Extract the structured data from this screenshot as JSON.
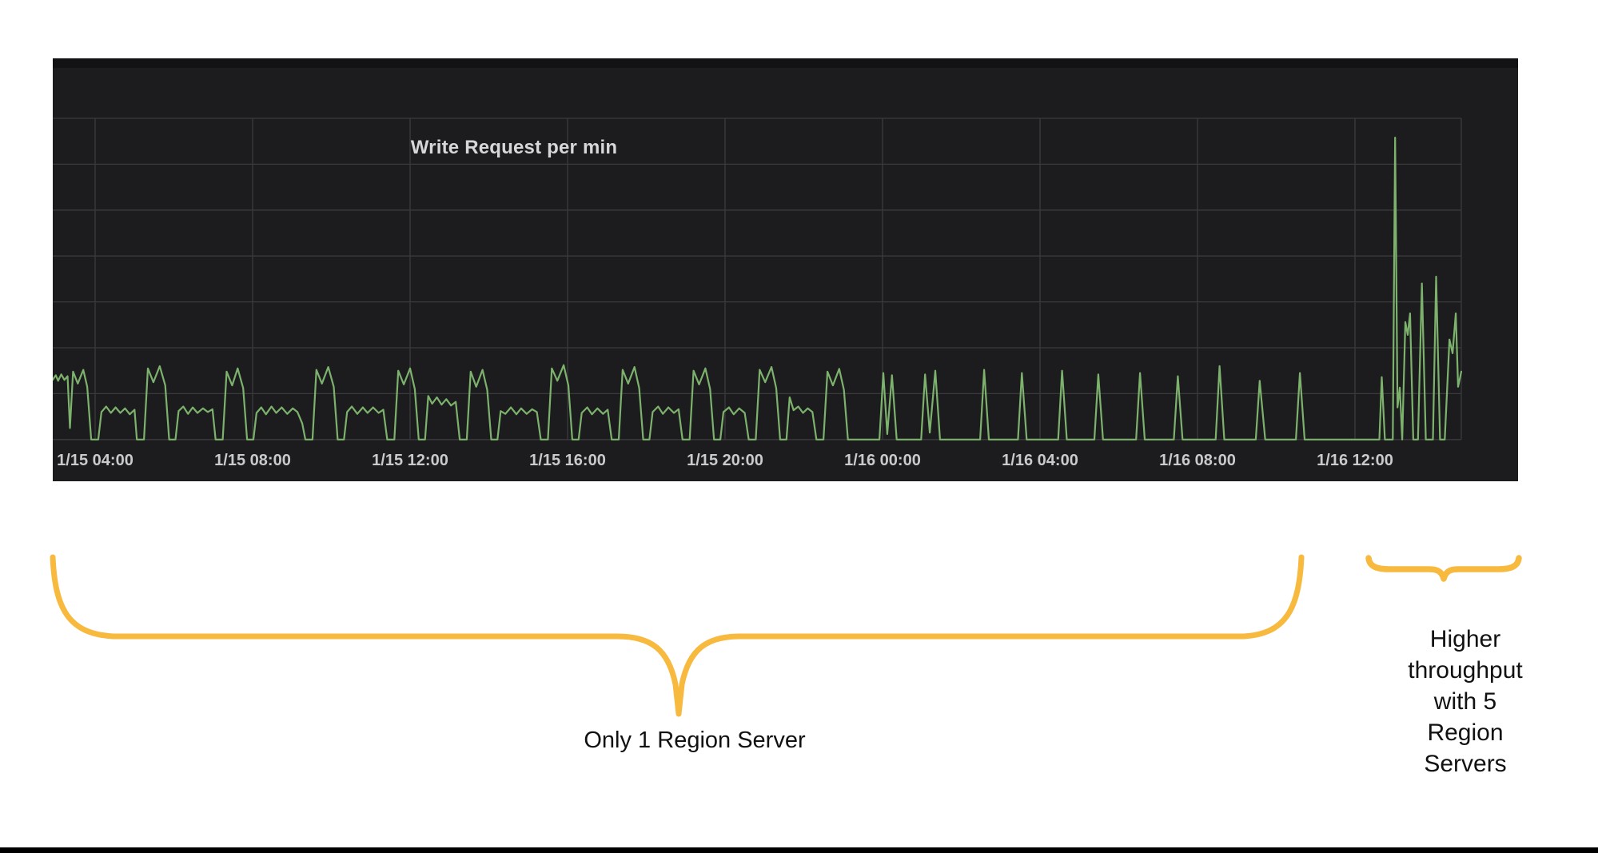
{
  "page": {
    "background_color": "#ffffff",
    "bottom_bar_color": "#000000"
  },
  "panel": {
    "title": "Write Request per min",
    "background_color": "#1c1c1e",
    "header_strip_color": "#121214",
    "title_color": "#d6d7d9",
    "grid_color": "#3b3b3f",
    "axis_label_color": "#c9cacc"
  },
  "chart_data": {
    "type": "line",
    "title": "Write Request per min",
    "series_name": "write requests per min",
    "line_color": "#7db26d",
    "legend": "none",
    "grid": "on",
    "xlabel": "",
    "ylabel": "",
    "y_axis_tick_labels_visible": false,
    "y_unit": "horizontal gridline units (0 = baseline, 7 = top gridline; no numeric y labels shown)",
    "y_range": [
      0,
      7
    ],
    "x_unit": "hours since 1/15 00:00",
    "x_range": [
      2.92,
      38.7
    ],
    "x_ticks": {
      "hours": [
        4,
        8,
        12,
        16,
        20,
        24,
        28,
        32,
        36
      ],
      "labels": [
        "1/15 04:00",
        "1/15 08:00",
        "1/15 12:00",
        "1/15 16:00",
        "1/15 20:00",
        "1/16 00:00",
        "1/16 04:00",
        "1/16 08:00",
        "1/16 12:00"
      ]
    },
    "points": [
      [
        2.92,
        1.3
      ],
      [
        3.0,
        1.4
      ],
      [
        3.06,
        1.28
      ],
      [
        3.14,
        1.42
      ],
      [
        3.22,
        1.3
      ],
      [
        3.3,
        1.38
      ],
      [
        3.36,
        0.25
      ],
      [
        3.44,
        1.48
      ],
      [
        3.56,
        1.22
      ],
      [
        3.7,
        1.52
      ],
      [
        3.8,
        1.15
      ],
      [
        3.9,
        0.0
      ],
      [
        4.08,
        0.0
      ],
      [
        4.16,
        0.6
      ],
      [
        4.28,
        0.72
      ],
      [
        4.4,
        0.58
      ],
      [
        4.52,
        0.7
      ],
      [
        4.64,
        0.58
      ],
      [
        4.76,
        0.68
      ],
      [
        4.88,
        0.55
      ],
      [
        5.0,
        0.65
      ],
      [
        5.06,
        0.0
      ],
      [
        5.24,
        0.0
      ],
      [
        5.34,
        1.55
      ],
      [
        5.48,
        1.25
      ],
      [
        5.64,
        1.6
      ],
      [
        5.78,
        1.18
      ],
      [
        5.88,
        0.0
      ],
      [
        6.04,
        0.0
      ],
      [
        6.12,
        0.62
      ],
      [
        6.24,
        0.72
      ],
      [
        6.36,
        0.56
      ],
      [
        6.48,
        0.7
      ],
      [
        6.6,
        0.58
      ],
      [
        6.74,
        0.68
      ],
      [
        6.86,
        0.6
      ],
      [
        6.98,
        0.66
      ],
      [
        7.06,
        0.0
      ],
      [
        7.24,
        0.0
      ],
      [
        7.34,
        1.48
      ],
      [
        7.48,
        1.18
      ],
      [
        7.62,
        1.55
      ],
      [
        7.76,
        1.12
      ],
      [
        7.86,
        0.0
      ],
      [
        8.02,
        0.0
      ],
      [
        8.1,
        0.58
      ],
      [
        8.22,
        0.7
      ],
      [
        8.34,
        0.55
      ],
      [
        8.48,
        0.72
      ],
      [
        8.6,
        0.58
      ],
      [
        8.74,
        0.7
      ],
      [
        8.88,
        0.56
      ],
      [
        9.02,
        0.68
      ],
      [
        9.14,
        0.6
      ],
      [
        9.26,
        0.35
      ],
      [
        9.34,
        0.0
      ],
      [
        9.52,
        0.0
      ],
      [
        9.62,
        1.52
      ],
      [
        9.76,
        1.22
      ],
      [
        9.92,
        1.58
      ],
      [
        10.06,
        1.15
      ],
      [
        10.16,
        0.0
      ],
      [
        10.32,
        0.0
      ],
      [
        10.4,
        0.6
      ],
      [
        10.52,
        0.72
      ],
      [
        10.66,
        0.56
      ],
      [
        10.8,
        0.7
      ],
      [
        10.92,
        0.58
      ],
      [
        11.06,
        0.7
      ],
      [
        11.2,
        0.58
      ],
      [
        11.32,
        0.65
      ],
      [
        11.42,
        0.0
      ],
      [
        11.6,
        0.0
      ],
      [
        11.7,
        1.5
      ],
      [
        11.84,
        1.2
      ],
      [
        12.0,
        1.55
      ],
      [
        12.12,
        1.1
      ],
      [
        12.22,
        0.0
      ],
      [
        12.38,
        0.0
      ],
      [
        12.46,
        0.95
      ],
      [
        12.56,
        0.78
      ],
      [
        12.68,
        0.92
      ],
      [
        12.8,
        0.76
      ],
      [
        12.92,
        0.88
      ],
      [
        13.04,
        0.74
      ],
      [
        13.16,
        0.82
      ],
      [
        13.26,
        0.0
      ],
      [
        13.44,
        0.0
      ],
      [
        13.54,
        1.48
      ],
      [
        13.68,
        1.15
      ],
      [
        13.84,
        1.52
      ],
      [
        13.96,
        1.08
      ],
      [
        14.06,
        0.0
      ],
      [
        14.22,
        0.0
      ],
      [
        14.3,
        0.62
      ],
      [
        14.42,
        0.56
      ],
      [
        14.56,
        0.7
      ],
      [
        14.7,
        0.55
      ],
      [
        14.82,
        0.68
      ],
      [
        14.96,
        0.56
      ],
      [
        15.1,
        0.66
      ],
      [
        15.22,
        0.6
      ],
      [
        15.32,
        0.0
      ],
      [
        15.5,
        0.0
      ],
      [
        15.6,
        1.55
      ],
      [
        15.74,
        1.28
      ],
      [
        15.9,
        1.62
      ],
      [
        16.02,
        1.18
      ],
      [
        16.12,
        0.0
      ],
      [
        16.28,
        0.0
      ],
      [
        16.36,
        0.58
      ],
      [
        16.5,
        0.7
      ],
      [
        16.62,
        0.55
      ],
      [
        16.76,
        0.68
      ],
      [
        16.9,
        0.56
      ],
      [
        17.02,
        0.65
      ],
      [
        17.12,
        0.0
      ],
      [
        17.3,
        0.0
      ],
      [
        17.4,
        1.52
      ],
      [
        17.54,
        1.22
      ],
      [
        17.7,
        1.58
      ],
      [
        17.82,
        1.12
      ],
      [
        17.92,
        0.0
      ],
      [
        18.08,
        0.0
      ],
      [
        18.16,
        0.6
      ],
      [
        18.3,
        0.72
      ],
      [
        18.42,
        0.56
      ],
      [
        18.56,
        0.7
      ],
      [
        18.7,
        0.58
      ],
      [
        18.82,
        0.66
      ],
      [
        18.92,
        0.0
      ],
      [
        19.1,
        0.0
      ],
      [
        19.2,
        1.5
      ],
      [
        19.34,
        1.2
      ],
      [
        19.5,
        1.55
      ],
      [
        19.62,
        1.1
      ],
      [
        19.72,
        0.0
      ],
      [
        19.88,
        0.0
      ],
      [
        19.96,
        0.6
      ],
      [
        20.1,
        0.7
      ],
      [
        20.22,
        0.55
      ],
      [
        20.36,
        0.68
      ],
      [
        20.5,
        0.58
      ],
      [
        20.6,
        0.0
      ],
      [
        20.78,
        0.0
      ],
      [
        20.88,
        1.52
      ],
      [
        21.02,
        1.25
      ],
      [
        21.18,
        1.58
      ],
      [
        21.3,
        1.12
      ],
      [
        21.4,
        0.0
      ],
      [
        21.56,
        0.0
      ],
      [
        21.64,
        0.92
      ],
      [
        21.74,
        0.64
      ],
      [
        21.86,
        0.72
      ],
      [
        21.98,
        0.58
      ],
      [
        22.1,
        0.68
      ],
      [
        22.22,
        0.6
      ],
      [
        22.32,
        0.0
      ],
      [
        22.5,
        0.0
      ],
      [
        22.6,
        1.48
      ],
      [
        22.74,
        1.18
      ],
      [
        22.9,
        1.54
      ],
      [
        23.02,
        1.08
      ],
      [
        23.12,
        0.0
      ],
      [
        23.92,
        0.0
      ],
      [
        24.02,
        1.45
      ],
      [
        24.12,
        0.12
      ],
      [
        24.24,
        1.4
      ],
      [
        24.36,
        0.0
      ],
      [
        24.98,
        0.0
      ],
      [
        25.08,
        1.42
      ],
      [
        25.2,
        0.15
      ],
      [
        25.34,
        1.5
      ],
      [
        25.46,
        0.0
      ],
      [
        26.48,
        0.0
      ],
      [
        26.58,
        1.52
      ],
      [
        26.7,
        0.0
      ],
      [
        27.44,
        0.0
      ],
      [
        27.54,
        1.45
      ],
      [
        27.66,
        0.0
      ],
      [
        28.46,
        0.0
      ],
      [
        28.56,
        1.5
      ],
      [
        28.68,
        0.0
      ],
      [
        29.38,
        0.0
      ],
      [
        29.48,
        1.42
      ],
      [
        29.6,
        0.0
      ],
      [
        30.44,
        0.0
      ],
      [
        30.54,
        1.45
      ],
      [
        30.66,
        0.0
      ],
      [
        31.4,
        0.0
      ],
      [
        31.5,
        1.38
      ],
      [
        31.62,
        0.0
      ],
      [
        32.46,
        0.0
      ],
      [
        32.56,
        1.6
      ],
      [
        32.68,
        0.0
      ],
      [
        33.48,
        0.0
      ],
      [
        33.58,
        1.28
      ],
      [
        33.72,
        0.0
      ],
      [
        34.5,
        0.0
      ],
      [
        34.6,
        1.45
      ],
      [
        34.72,
        0.0
      ],
      [
        36.62,
        0.0
      ],
      [
        36.68,
        1.36
      ],
      [
        36.76,
        0.0
      ],
      [
        36.96,
        0.0
      ],
      [
        37.02,
        6.58
      ],
      [
        37.08,
        0.7
      ],
      [
        37.14,
        1.13
      ],
      [
        37.2,
        0.0
      ],
      [
        37.28,
        2.56
      ],
      [
        37.34,
        2.28
      ],
      [
        37.4,
        2.75
      ],
      [
        37.48,
        0.0
      ],
      [
        37.6,
        0.0
      ],
      [
        37.7,
        3.4
      ],
      [
        37.8,
        0.0
      ],
      [
        37.98,
        0.0
      ],
      [
        38.06,
        3.55
      ],
      [
        38.16,
        0.0
      ],
      [
        38.28,
        0.0
      ],
      [
        38.4,
        2.18
      ],
      [
        38.48,
        1.88
      ],
      [
        38.56,
        2.75
      ],
      [
        38.62,
        1.15
      ],
      [
        38.7,
        1.48
      ]
    ]
  },
  "annotations": {
    "brace_color": "#f7b93e",
    "left": {
      "label": "Only 1 Region Server"
    },
    "right": {
      "lines": [
        "Higher",
        "throughput",
        "with 5",
        "Region",
        "Servers"
      ]
    }
  }
}
